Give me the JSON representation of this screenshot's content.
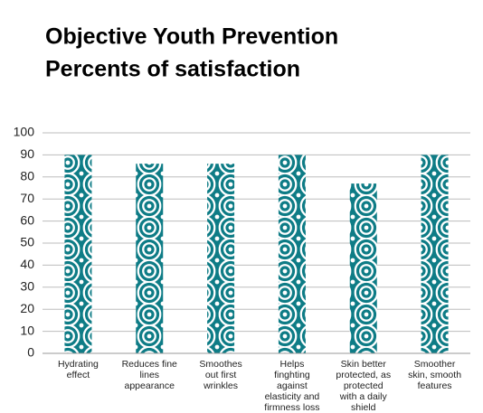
{
  "chart_data": {
    "type": "bar",
    "title": "Objective Youth Prevention",
    "subtitle": "Percents of satisfaction",
    "categories": [
      "Hydrating effect",
      "Reduces fine lines appearance",
      "Smoothes out first wrinkles",
      "Helps finghting against elasticity and firmness loss",
      "Skin better protected, as protected with a daily shield",
      "Smoother skin, smooth features"
    ],
    "values": [
      90,
      86,
      86,
      90,
      77,
      90
    ],
    "color": "#0e7c86",
    "ylim": [
      0,
      100
    ],
    "yticks": [
      0,
      10,
      20,
      30,
      40,
      50,
      60,
      70,
      80,
      90,
      100
    ],
    "grid": true
  }
}
